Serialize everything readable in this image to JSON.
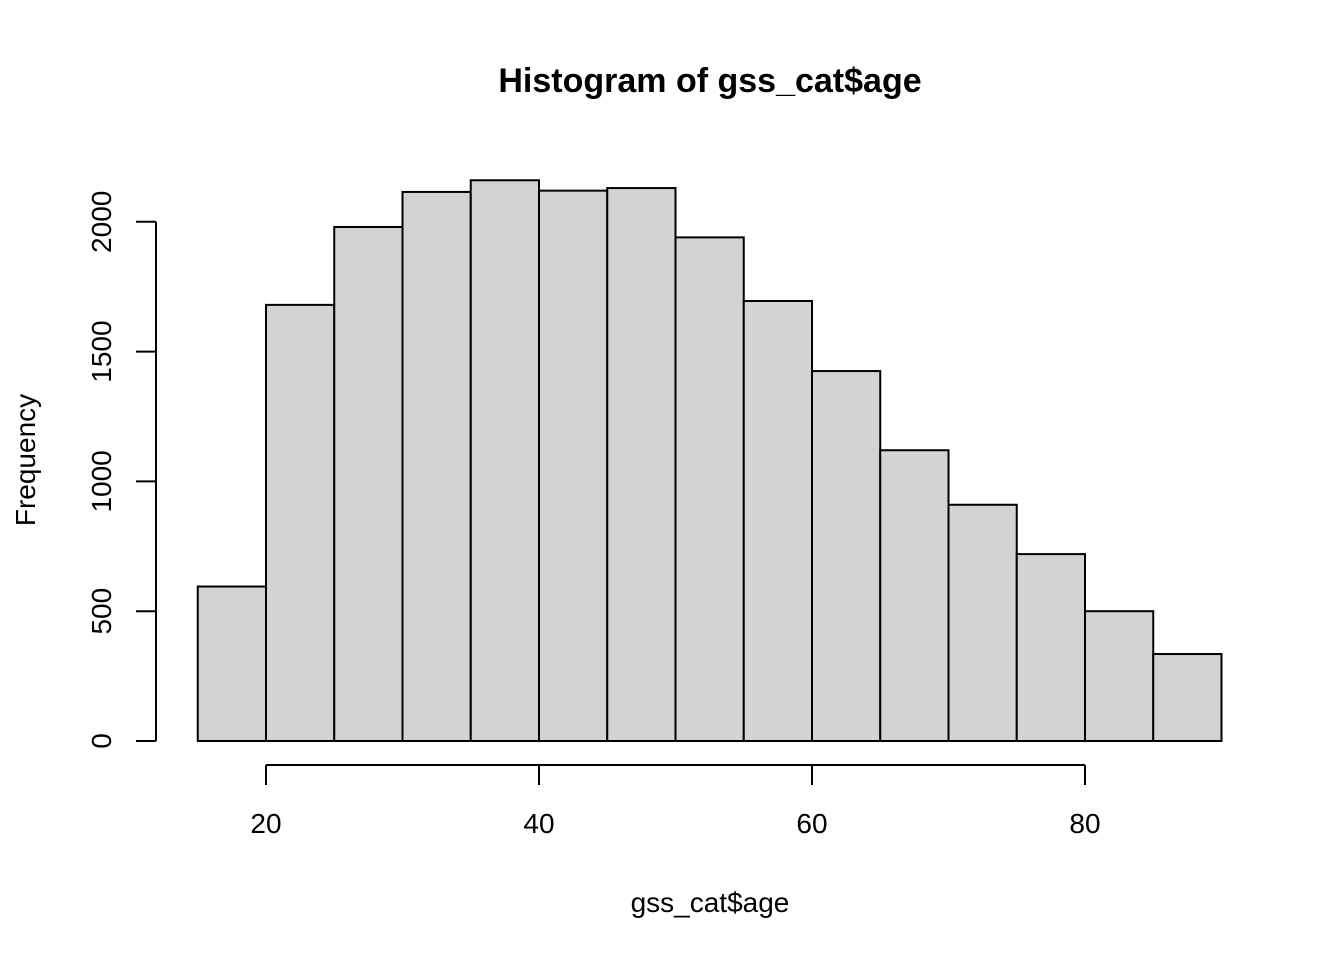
{
  "chart_data": {
    "type": "bar",
    "title": "Histogram of gss_cat$age",
    "xlabel": "gss_cat$age",
    "ylabel": "Frequency",
    "bins": [
      {
        "start": 15,
        "end": 20,
        "count": 595
      },
      {
        "start": 20,
        "end": 25,
        "count": 1680
      },
      {
        "start": 25,
        "end": 30,
        "count": 1980
      },
      {
        "start": 30,
        "end": 35,
        "count": 2115
      },
      {
        "start": 35,
        "end": 40,
        "count": 2160
      },
      {
        "start": 40,
        "end": 45,
        "count": 2120
      },
      {
        "start": 45,
        "end": 50,
        "count": 2130
      },
      {
        "start": 50,
        "end": 55,
        "count": 1940
      },
      {
        "start": 55,
        "end": 60,
        "count": 1695
      },
      {
        "start": 60,
        "end": 65,
        "count": 1425
      },
      {
        "start": 65,
        "end": 70,
        "count": 1120
      },
      {
        "start": 70,
        "end": 75,
        "count": 910
      },
      {
        "start": 75,
        "end": 80,
        "count": 720
      },
      {
        "start": 80,
        "end": 85,
        "count": 500
      },
      {
        "start": 85,
        "end": 90,
        "count": 335
      }
    ],
    "x_ticks": [
      20,
      40,
      60,
      80
    ],
    "y_ticks": [
      0,
      500,
      1000,
      1500,
      2000
    ],
    "bar_color": "#d3d3d3",
    "grid": false,
    "legend": "none"
  }
}
